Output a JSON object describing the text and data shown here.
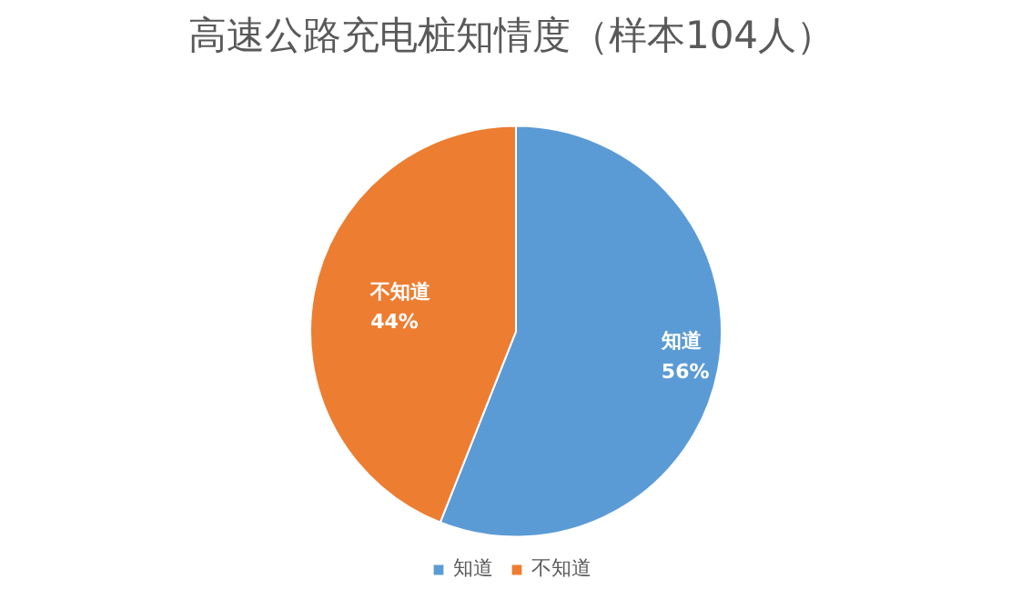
{
  "chart_data": {
    "type": "pie",
    "title": "高速公路充电桩知情度（样本104人）",
    "categories": [
      "知道",
      "不知道"
    ],
    "values": [
      56,
      44
    ],
    "value_labels": [
      "56%",
      "44%"
    ],
    "colors": [
      "#5b9bd5",
      "#ed7d31"
    ],
    "legend": "bottom"
  }
}
